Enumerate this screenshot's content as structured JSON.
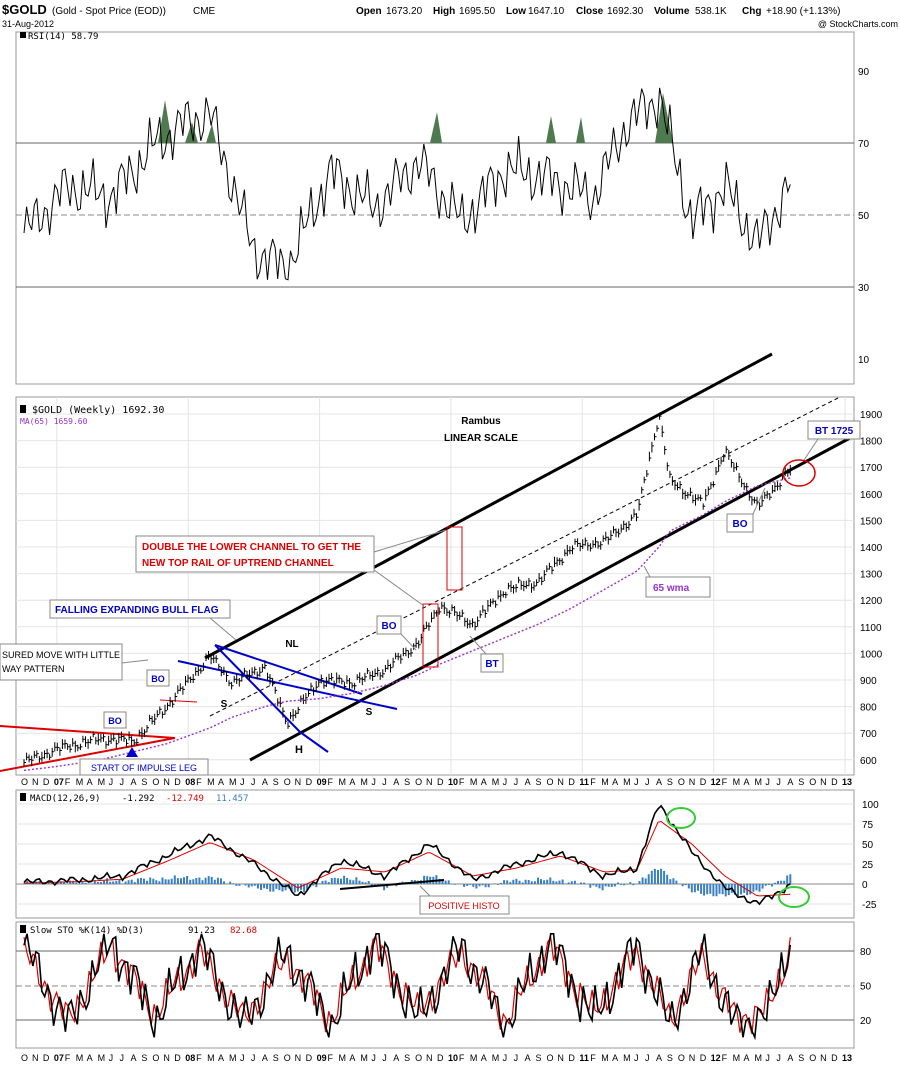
{
  "header": {
    "symbol": "$GOLD",
    "description": "(Gold - Spot Price (EOD))",
    "exchange": "CME",
    "date": "31-Aug-2012",
    "open_label": "Open",
    "open": "1673.20",
    "high_label": "High",
    "high": "1695.50",
    "low_label": "Low",
    "low": "1647.10",
    "close_label": "Close",
    "close": "1692.30",
    "volume_label": "Volume",
    "volume": "538.1K",
    "chg_label": "Chg",
    "chg": "+18.90 (+1.13%)",
    "copyright": "@ StockCharts.com"
  },
  "rsi": {
    "legend": "RSI(14) 58.79",
    "ticks": [
      "90",
      "70",
      "50",
      "30",
      "10"
    ]
  },
  "price": {
    "legend": "$GOLD (Weekly) 1692.30",
    "ma_legend": "MA(65) 1659.60",
    "ticks": [
      "1900",
      "1800",
      "1700",
      "1600",
      "1500",
      "1400",
      "1300",
      "1200",
      "1100",
      "1000",
      "900",
      "800",
      "700",
      "600"
    ],
    "title1": "Rambus",
    "title2": "LINEAR SCALE"
  },
  "annotations": {
    "measured_move_1": "SURED MOVE WITH LITTLE",
    "measured_move_2": "WAY PATTERN",
    "bo": "BO",
    "start_impulse": "START OF IMPULSE LEG",
    "falling_flag": "FALLING EXPANDING BULL FLAG",
    "double_channel_1": "DOUBLE THE LOWER CHANNEL TO GET THE",
    "double_channel_2": "NEW TOP RAIL OF UPTREND CHANNEL",
    "nl": "NL",
    "s": "S",
    "h": "H",
    "bt": "BT",
    "wma65": "65 wma",
    "bt1725": "BT 1725",
    "positive_histo": "POSITIVE HISTO"
  },
  "macd": {
    "legend_label": "MACD(12,26,9)",
    "v1": "-1.292",
    "v2": "-12.749",
    "v3": "11.457",
    "ticks": [
      "100",
      "75",
      "50",
      "25",
      "0",
      "-25"
    ]
  },
  "sto": {
    "legend_label": "Slow STO %K(14) %D(3)",
    "v1": "91.23",
    "v2": "82.68",
    "ticks": [
      "80",
      "50",
      "20"
    ]
  },
  "xaxis": [
    "O",
    "N",
    "D",
    "07",
    "F",
    "M",
    "A",
    "M",
    "J",
    "J",
    "A",
    "S",
    "O",
    "N",
    "D",
    "08",
    "F",
    "M",
    "A",
    "M",
    "J",
    "J",
    "A",
    "S",
    "O",
    "N",
    "D",
    "09",
    "F",
    "M",
    "A",
    "M",
    "J",
    "J",
    "A",
    "S",
    "O",
    "N",
    "D",
    "10",
    "F",
    "M",
    "A",
    "M",
    "J",
    "J",
    "A",
    "S",
    "O",
    "N",
    "D",
    "11",
    "F",
    "M",
    "A",
    "M",
    "J",
    "J",
    "A",
    "S",
    "O",
    "N",
    "D",
    "12",
    "F",
    "M",
    "A",
    "M",
    "J",
    "J",
    "A",
    "S",
    "O",
    "N",
    "D",
    "13"
  ],
  "colors": {
    "grid": "#c8c8c8",
    "price": "#000000",
    "ma": "#9933cc",
    "blue": "#0000cc",
    "red": "#dd0000",
    "histo": "#3a7fc1",
    "rsi_fill": "#4f7a4f",
    "green": "#33cc33"
  },
  "chart_data": [
    {
      "type": "line",
      "title": "RSI(14)",
      "ylim": [
        0,
        100
      ],
      "x": [
        "2006-10",
        "2007-02",
        "2007-06",
        "2007-10",
        "2008-01",
        "2008-03",
        "2008-07",
        "2008-10",
        "2009-02",
        "2009-06",
        "2009-10",
        "2010-02",
        "2010-06",
        "2010-10",
        "2011-02",
        "2011-05",
        "2011-08",
        "2011-11",
        "2012-02",
        "2012-05",
        "2012-08"
      ],
      "series": [
        {
          "name": "RSI(14)",
          "values": [
            45,
            58,
            55,
            70,
            76,
            78,
            40,
            35,
            62,
            52,
            65,
            48,
            63,
            60,
            55,
            75,
            83,
            48,
            58,
            42,
            58.79
          ]
        }
      ]
    },
    {
      "type": "line",
      "title": "$GOLD (Weekly)",
      "ylim": [
        560,
        1930
      ],
      "x": [
        "2006-10",
        "2007-01",
        "2007-05",
        "2007-08",
        "2007-11",
        "2008-03",
        "2008-05",
        "2008-08",
        "2008-10",
        "2009-01",
        "2009-04",
        "2009-07",
        "2009-10",
        "2009-12",
        "2010-03",
        "2010-06",
        "2010-09",
        "2010-12",
        "2011-03",
        "2011-06",
        "2011-08",
        "2011-09",
        "2011-12",
        "2012-02",
        "2012-05",
        "2012-08"
      ],
      "series": [
        {
          "name": "$GOLD (Weekly)",
          "values": [
            590,
            640,
            680,
            670,
            800,
            990,
            890,
            950,
            740,
            900,
            890,
            940,
            1040,
            1180,
            1110,
            1240,
            1270,
            1400,
            1420,
            1520,
            1900,
            1650,
            1560,
            1760,
            1550,
            1692.3
          ]
        },
        {
          "name": "MA(65)",
          "values": [
            560,
            575,
            600,
            630,
            660,
            720,
            760,
            800,
            820,
            830,
            850,
            880,
            920,
            960,
            1010,
            1060,
            1110,
            1170,
            1240,
            1310,
            1400,
            1460,
            1520,
            1570,
            1630,
            1659.6
          ]
        }
      ]
    },
    {
      "type": "line",
      "title": "MACD(12,26,9)",
      "ylim": [
        -40,
        110
      ],
      "x": [
        "2006-10",
        "2007-03",
        "2007-07",
        "2007-11",
        "2008-03",
        "2008-07",
        "2008-11",
        "2009-03",
        "2009-07",
        "2009-11",
        "2010-03",
        "2010-07",
        "2010-11",
        "2011-03",
        "2011-06",
        "2011-08",
        "2011-11",
        "2012-02",
        "2012-05",
        "2012-08"
      ],
      "series": [
        {
          "name": "MACD",
          "values": [
            2,
            5,
            10,
            35,
            60,
            25,
            -15,
            30,
            10,
            50,
            5,
            25,
            40,
            10,
            20,
            100,
            40,
            -5,
            -25,
            -1.292
          ]
        },
        {
          "name": "Signal",
          "values": [
            1,
            3,
            6,
            28,
            52,
            30,
            -5,
            20,
            15,
            40,
            10,
            20,
            35,
            15,
            18,
            80,
            50,
            10,
            -15,
            -12.749
          ]
        },
        {
          "name": "Histogram",
          "values": [
            1,
            2,
            4,
            7,
            8,
            -5,
            -10,
            10,
            -5,
            10,
            -5,
            5,
            5,
            -5,
            2,
            20,
            -10,
            -15,
            -10,
            11.457
          ]
        }
      ]
    },
    {
      "type": "line",
      "title": "Slow STO %K(14) %D(3)",
      "ylim": [
        0,
        100
      ],
      "x": [
        "2006-10",
        "2007-02",
        "2007-06",
        "2007-10",
        "2008-02",
        "2008-06",
        "2008-10",
        "2009-02",
        "2009-06",
        "2009-10",
        "2010-02",
        "2010-06",
        "2010-10",
        "2011-02",
        "2011-06",
        "2011-09",
        "2011-12",
        "2012-03",
        "2012-06",
        "2012-08"
      ],
      "series": [
        {
          "name": "%K",
          "values": [
            85,
            15,
            90,
            20,
            85,
            15,
            80,
            15,
            90,
            20,
            85,
            15,
            90,
            20,
            85,
            15,
            80,
            15,
            25,
            91.23
          ]
        },
        {
          "name": "%D",
          "values": [
            80,
            20,
            85,
            25,
            80,
            20,
            75,
            20,
            85,
            25,
            80,
            20,
            85,
            25,
            80,
            20,
            75,
            20,
            30,
            82.68
          ]
        }
      ]
    }
  ]
}
